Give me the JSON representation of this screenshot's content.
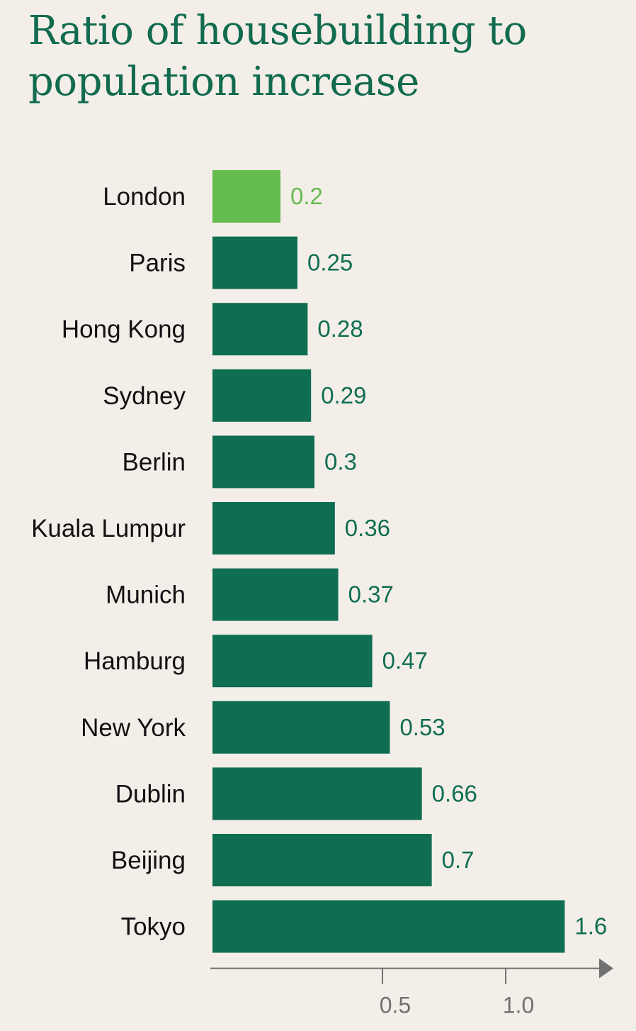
{
  "chart_data": {
    "type": "bar",
    "orientation": "horizontal",
    "title": "Ratio of housebuilding to population increase",
    "categories": [
      "London",
      "Paris",
      "Hong Kong",
      "Sydney",
      "Berlin",
      "Kuala Lumpur",
      "Munich",
      "Hamburg",
      "New York",
      "Dublin",
      "Beijing",
      "Tokyo"
    ],
    "values": [
      0.2,
      0.25,
      0.28,
      0.29,
      0.3,
      0.36,
      0.37,
      0.47,
      0.53,
      0.66,
      0.7,
      1.6
    ],
    "value_labels": [
      "0.2",
      "0.25",
      "0.28",
      "0.29",
      "0.3",
      "0.36",
      "0.37",
      "0.47",
      "0.53",
      "0.66",
      "0.7",
      "1.6"
    ],
    "highlight": "London",
    "x_ticks": [
      0.5,
      1.0
    ],
    "x_tick_labels": [
      "0.5",
      "1.0"
    ],
    "xlabel": "",
    "ylabel": "",
    "grid": false,
    "colors": {
      "bar": "#0f6e52",
      "highlight": "#64bb4e",
      "axis": "#707070",
      "title": "#116b4f",
      "background": "#f4eee9"
    }
  }
}
